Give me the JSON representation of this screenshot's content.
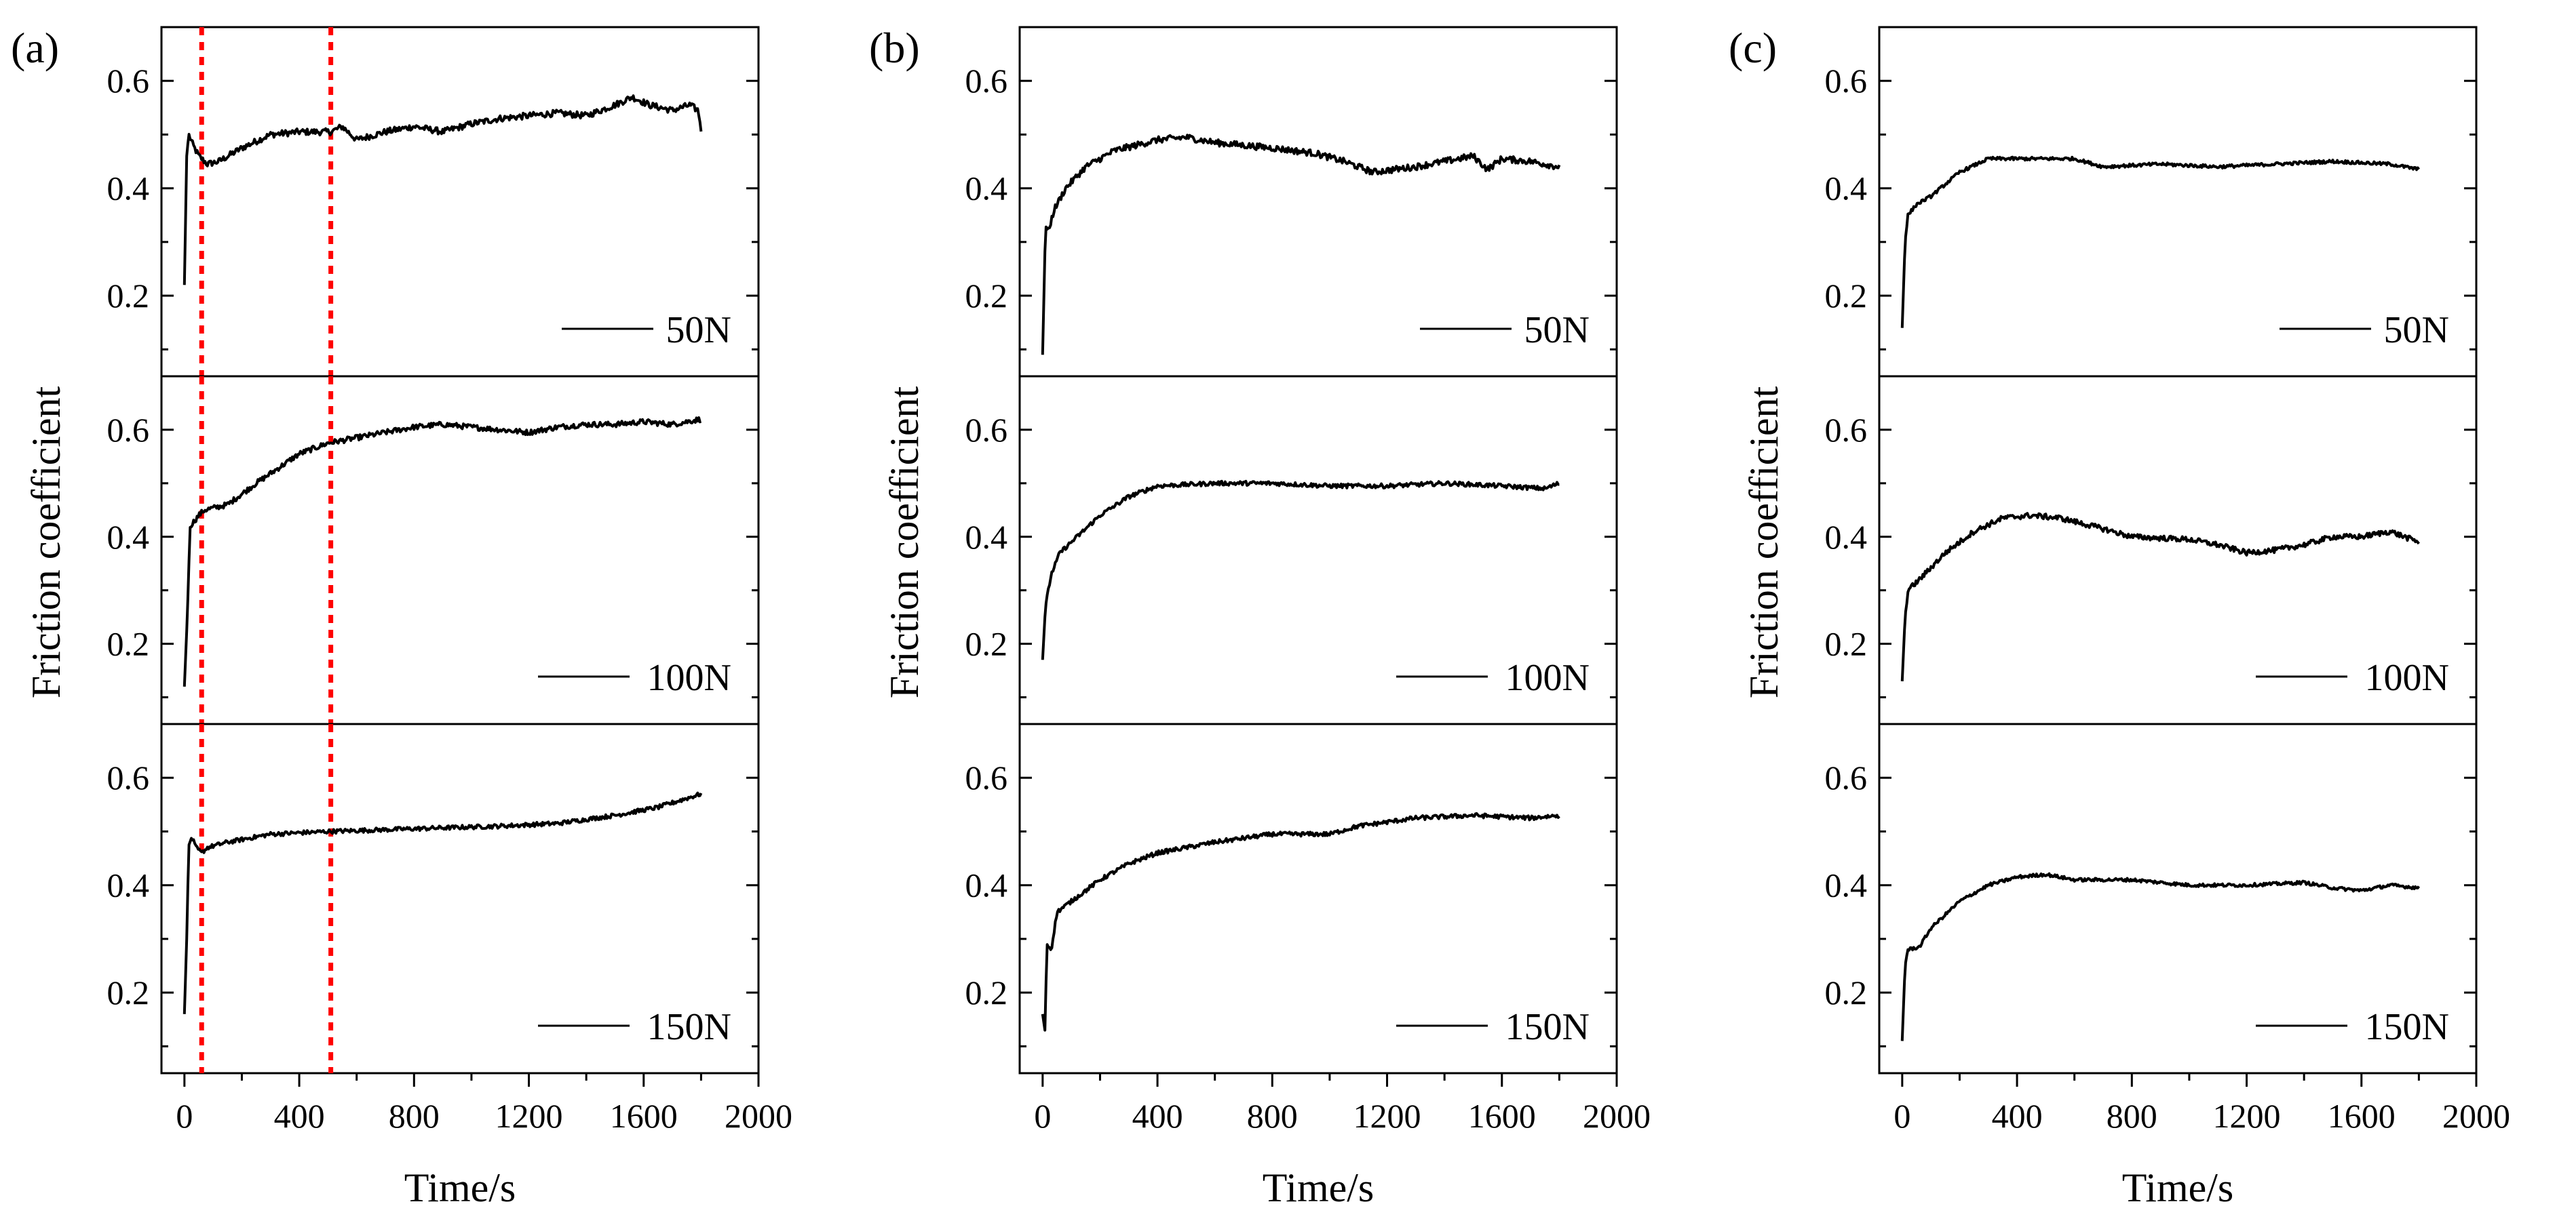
{
  "chart_data": {
    "type": "line",
    "x_tick_labels": [
      "0",
      "400",
      "800",
      "1200",
      "1600",
      "2000"
    ],
    "x_ticks": [
      0,
      400,
      800,
      1200,
      1600,
      2000
    ],
    "y_tick_labels": [
      "0.2",
      "0.4",
      "0.6"
    ],
    "y_ticks": [
      0.2,
      0.4,
      0.6
    ],
    "xlim": [
      -80,
      2000
    ],
    "ylim": [
      0.05,
      0.7
    ],
    "xlabel": "Time/s",
    "ylabel": "Friction coefficient",
    "line_color": "#000000",
    "marker_color": "#ff0000",
    "columns": [
      {
        "label": "(a)",
        "vlines": [
          60,
          510
        ],
        "rows": [
          {
            "legend": "50N",
            "noise": 0.006,
            "points": [
              [
                0,
                0.22
              ],
              [
                8,
                0.46
              ],
              [
                15,
                0.5
              ],
              [
                30,
                0.48
              ],
              [
                50,
                0.46
              ],
              [
                80,
                0.445
              ],
              [
                120,
                0.45
              ],
              [
                200,
                0.475
              ],
              [
                300,
                0.5
              ],
              [
                400,
                0.505
              ],
              [
                510,
                0.505
              ],
              [
                550,
                0.515
              ],
              [
                600,
                0.49
              ],
              [
                700,
                0.505
              ],
              [
                800,
                0.515
              ],
              [
                900,
                0.505
              ],
              [
                1000,
                0.52
              ],
              [
                1100,
                0.53
              ],
              [
                1200,
                0.535
              ],
              [
                1300,
                0.54
              ],
              [
                1400,
                0.535
              ],
              [
                1500,
                0.555
              ],
              [
                1560,
                0.57
              ],
              [
                1620,
                0.555
              ],
              [
                1700,
                0.545
              ],
              [
                1760,
                0.555
              ],
              [
                1790,
                0.545
              ],
              [
                1800,
                0.51
              ]
            ]
          },
          {
            "legend": "100N",
            "noise": 0.005,
            "points": [
              [
                0,
                0.12
              ],
              [
                10,
                0.25
              ],
              [
                20,
                0.42
              ],
              [
                35,
                0.43
              ],
              [
                50,
                0.44
              ],
              [
                70,
                0.45
              ],
              [
                150,
                0.46
              ],
              [
                250,
                0.5
              ],
              [
                400,
                0.555
              ],
              [
                500,
                0.575
              ],
              [
                600,
                0.585
              ],
              [
                700,
                0.595
              ],
              [
                800,
                0.605
              ],
              [
                900,
                0.61
              ],
              [
                1000,
                0.605
              ],
              [
                1100,
                0.6
              ],
              [
                1200,
                0.595
              ],
              [
                1300,
                0.605
              ],
              [
                1400,
                0.61
              ],
              [
                1500,
                0.61
              ],
              [
                1600,
                0.615
              ],
              [
                1700,
                0.61
              ],
              [
                1800,
                0.62
              ]
            ]
          },
          {
            "legend": "150N",
            "noise": 0.004,
            "points": [
              [
                0,
                0.16
              ],
              [
                8,
                0.3
              ],
              [
                15,
                0.47
              ],
              [
                25,
                0.49
              ],
              [
                40,
                0.47
              ],
              [
                60,
                0.46
              ],
              [
                80,
                0.47
              ],
              [
                150,
                0.48
              ],
              [
                300,
                0.495
              ],
              [
                500,
                0.5
              ],
              [
                800,
                0.505
              ],
              [
                1100,
                0.51
              ],
              [
                1300,
                0.515
              ],
              [
                1500,
                0.53
              ],
              [
                1650,
                0.545
              ],
              [
                1800,
                0.57
              ]
            ]
          }
        ]
      },
      {
        "label": "(b)",
        "vlines": [],
        "rows": [
          {
            "legend": "50N",
            "noise": 0.006,
            "points": [
              [
                0,
                0.09
              ],
              [
                10,
                0.33
              ],
              [
                20,
                0.32
              ],
              [
                40,
                0.36
              ],
              [
                80,
                0.4
              ],
              [
                150,
                0.44
              ],
              [
                250,
                0.47
              ],
              [
                400,
                0.49
              ],
              [
                500,
                0.495
              ],
              [
                600,
                0.485
              ],
              [
                800,
                0.475
              ],
              [
                950,
                0.465
              ],
              [
                1050,
                0.45
              ],
              [
                1150,
                0.43
              ],
              [
                1300,
                0.44
              ],
              [
                1450,
                0.455
              ],
              [
                1500,
                0.46
              ],
              [
                1550,
                0.435
              ],
              [
                1600,
                0.455
              ],
              [
                1700,
                0.45
              ],
              [
                1800,
                0.44
              ]
            ]
          },
          {
            "legend": "100N",
            "noise": 0.004,
            "points": [
              [
                0,
                0.17
              ],
              [
                10,
                0.27
              ],
              [
                30,
                0.33
              ],
              [
                60,
                0.37
              ],
              [
                120,
                0.4
              ],
              [
                200,
                0.44
              ],
              [
                300,
                0.475
              ],
              [
                400,
                0.495
              ],
              [
                600,
                0.5
              ],
              [
                800,
                0.5
              ],
              [
                1000,
                0.495
              ],
              [
                1200,
                0.495
              ],
              [
                1400,
                0.5
              ],
              [
                1600,
                0.495
              ],
              [
                1750,
                0.49
              ],
              [
                1800,
                0.5
              ]
            ]
          },
          {
            "legend": "150N",
            "noise": 0.004,
            "points": [
              [
                0,
                0.16
              ],
              [
                8,
                0.13
              ],
              [
                15,
                0.29
              ],
              [
                30,
                0.28
              ],
              [
                50,
                0.35
              ],
              [
                100,
                0.37
              ],
              [
                200,
                0.41
              ],
              [
                300,
                0.44
              ],
              [
                400,
                0.46
              ],
              [
                600,
                0.48
              ],
              [
                800,
                0.495
              ],
              [
                1000,
                0.495
              ],
              [
                1100,
                0.51
              ],
              [
                1300,
                0.525
              ],
              [
                1500,
                0.53
              ],
              [
                1700,
                0.525
              ],
              [
                1800,
                0.53
              ]
            ]
          }
        ]
      },
      {
        "label": "(c)",
        "vlines": [],
        "rows": [
          {
            "legend": "50N",
            "noise": 0.003,
            "points": [
              [
                0,
                0.14
              ],
              [
                10,
                0.3
              ],
              [
                20,
                0.35
              ],
              [
                50,
                0.37
              ],
              [
                100,
                0.385
              ],
              [
                200,
                0.43
              ],
              [
                300,
                0.455
              ],
              [
                500,
                0.455
              ],
              [
                600,
                0.455
              ],
              [
                700,
                0.44
              ],
              [
                900,
                0.445
              ],
              [
                1100,
                0.44
              ],
              [
                1300,
                0.445
              ],
              [
                1500,
                0.45
              ],
              [
                1700,
                0.445
              ],
              [
                1800,
                0.435
              ]
            ]
          },
          {
            "legend": "100N",
            "noise": 0.005,
            "points": [
              [
                0,
                0.13
              ],
              [
                10,
                0.25
              ],
              [
                20,
                0.3
              ],
              [
                60,
                0.32
              ],
              [
                150,
                0.37
              ],
              [
                250,
                0.41
              ],
              [
                350,
                0.435
              ],
              [
                450,
                0.44
              ],
              [
                550,
                0.435
              ],
              [
                700,
                0.415
              ],
              [
                800,
                0.4
              ],
              [
                1000,
                0.395
              ],
              [
                1100,
                0.385
              ],
              [
                1200,
                0.37
              ],
              [
                1300,
                0.375
              ],
              [
                1400,
                0.385
              ],
              [
                1500,
                0.4
              ],
              [
                1600,
                0.4
              ],
              [
                1700,
                0.41
              ],
              [
                1800,
                0.39
              ]
            ]
          },
          {
            "legend": "150N",
            "noise": 0.003,
            "points": [
              [
                0,
                0.11
              ],
              [
                10,
                0.25
              ],
              [
                20,
                0.28
              ],
              [
                60,
                0.285
              ],
              [
                100,
                0.32
              ],
              [
                200,
                0.37
              ],
              [
                300,
                0.4
              ],
              [
                400,
                0.415
              ],
              [
                500,
                0.42
              ],
              [
                600,
                0.41
              ],
              [
                800,
                0.41
              ],
              [
                1000,
                0.4
              ],
              [
                1200,
                0.4
              ],
              [
                1400,
                0.405
              ],
              [
                1500,
                0.395
              ],
              [
                1600,
                0.39
              ],
              [
                1700,
                0.4
              ],
              [
                1800,
                0.395
              ]
            ]
          }
        ]
      }
    ]
  }
}
